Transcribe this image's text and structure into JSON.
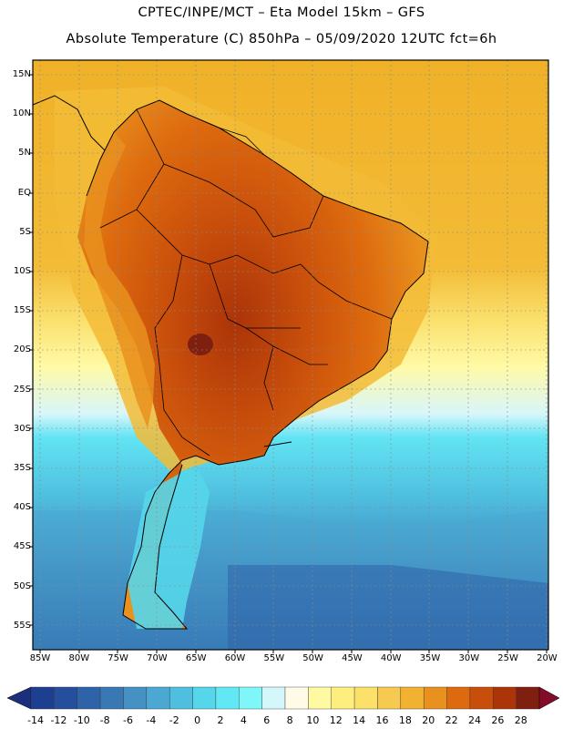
{
  "header": {
    "line1": "CPTEC/INPE/MCT –  Eta Model 15km – GFS",
    "line2": "Absolute Temperature (C) 850hPa – 05/09/2020 12UTC fct=6h"
  },
  "axes": {
    "lat_labels": [
      "15N",
      "10N",
      "5N",
      "EQ",
      "5S",
      "10S",
      "15S",
      "20S",
      "25S",
      "30S",
      "35S",
      "40S",
      "45S",
      "50S",
      "55S"
    ],
    "lon_labels": [
      "85W",
      "80W",
      "75W",
      "70W",
      "65W",
      "60W",
      "55W",
      "50W",
      "45W",
      "40W",
      "35W",
      "30W",
      "25W",
      "20W"
    ]
  },
  "colorbar": {
    "labels": [
      "-14",
      "-12",
      "-10",
      "-8",
      "-6",
      "-4",
      "-2",
      "0",
      "2",
      "4",
      "6",
      "8",
      "10",
      "12",
      "14",
      "16",
      "18",
      "20",
      "22",
      "24",
      "26",
      "28"
    ],
    "colors": [
      "#1c3f8f",
      "#254f9c",
      "#2f63a8",
      "#3a78b4",
      "#4591c4",
      "#4aa8d2",
      "#4fbfdf",
      "#55d6ea",
      "#62e8f4",
      "#7ff7f9",
      "#d3f7fb",
      "#fffbe6",
      "#fffaa2",
      "#fdee7e",
      "#fbe06a",
      "#f6c950",
      "#f1b231",
      "#e9911e",
      "#dd6a0e",
      "#c84e0b",
      "#ab3409",
      "#7e1f10"
    ],
    "low_arrow_color": "#1b2f7a",
    "high_arrow_color": "#820c2a"
  }
}
